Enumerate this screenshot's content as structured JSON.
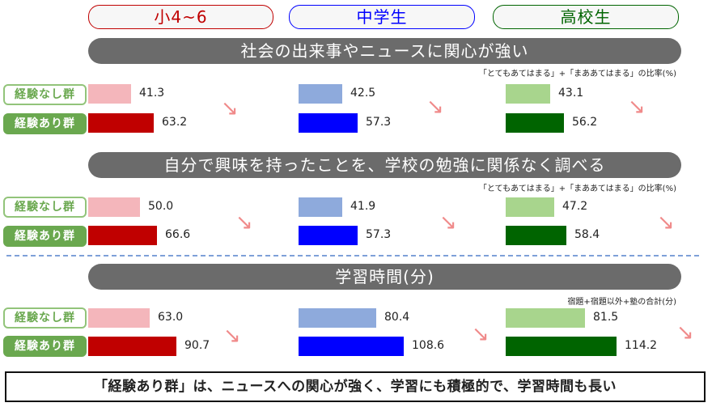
{
  "colors": {
    "groups": [
      {
        "none": "#f4b6bb",
        "exp": "#c00000"
      },
      {
        "none": "#8eaadc",
        "exp": "#0000ff"
      },
      {
        "none": "#a8d58d",
        "exp": "#006400"
      }
    ],
    "arrow": "#f08a8a",
    "section_bg": "#6b6b6b"
  },
  "group_headers": [
    {
      "label": "小4~6",
      "color": "#c00000"
    },
    {
      "label": "中学生",
      "color": "#0000ff"
    },
    {
      "label": "高校生",
      "color": "#006400"
    }
  ],
  "series_labels": {
    "none": "経験なし群",
    "exp": "経験あり群"
  },
  "arrow_icon": "down-right-arrow-icon",
  "summary": "「経験あり群」は、ニュースへの関心が強く、学習にも積極的で、学習時間も長い",
  "chart_data": [
    {
      "type": "bar",
      "title": "社会の出来事やニュースに関心が強い",
      "note": "「とてもあてはまる」+「まああてはまる」の比率(%)",
      "categories": [
        "小4~6",
        "中学生",
        "高校生"
      ],
      "series": [
        {
          "name": "経験なし群",
          "values": [
            41.3,
            42.5,
            43.1
          ],
          "labels": [
            "41.3",
            "42.5",
            "43.1"
          ]
        },
        {
          "name": "経験あり群",
          "values": [
            63.2,
            57.3,
            56.2
          ],
          "labels": [
            "63.2",
            "57.3",
            "56.2"
          ]
        }
      ],
      "vmax": 120
    },
    {
      "type": "bar",
      "title": "自分で興味を持ったことを、学校の勉強に関係なく調べる",
      "note": "「とてもあてはまる」+「まああてはまる」の比率(%)",
      "categories": [
        "小4~6",
        "中学生",
        "高校生"
      ],
      "series": [
        {
          "name": "経験なし群",
          "values": [
            50.0,
            41.9,
            47.2
          ],
          "labels": [
            "50.0",
            "41.9",
            "47.2"
          ]
        },
        {
          "name": "経験あり群",
          "values": [
            66.6,
            57.3,
            58.4
          ],
          "labels": [
            "66.6",
            "57.3",
            "58.4"
          ]
        }
      ],
      "vmax": 120
    },
    {
      "type": "bar",
      "title": "学習時間(分)",
      "note": "宿題+宿題以外+塾の合計(分)",
      "categories": [
        "小4~6",
        "中学生",
        "高校生"
      ],
      "series": [
        {
          "name": "経験なし群",
          "values": [
            63.0,
            80.4,
            81.5
          ],
          "labels": [
            "63.0",
            "80.4",
            "81.5"
          ]
        },
        {
          "name": "経験あり群",
          "values": [
            90.7,
            108.6,
            114.2
          ],
          "labels": [
            "90.7",
            "108.6",
            "114.2"
          ]
        }
      ],
      "vmax": 150
    }
  ]
}
